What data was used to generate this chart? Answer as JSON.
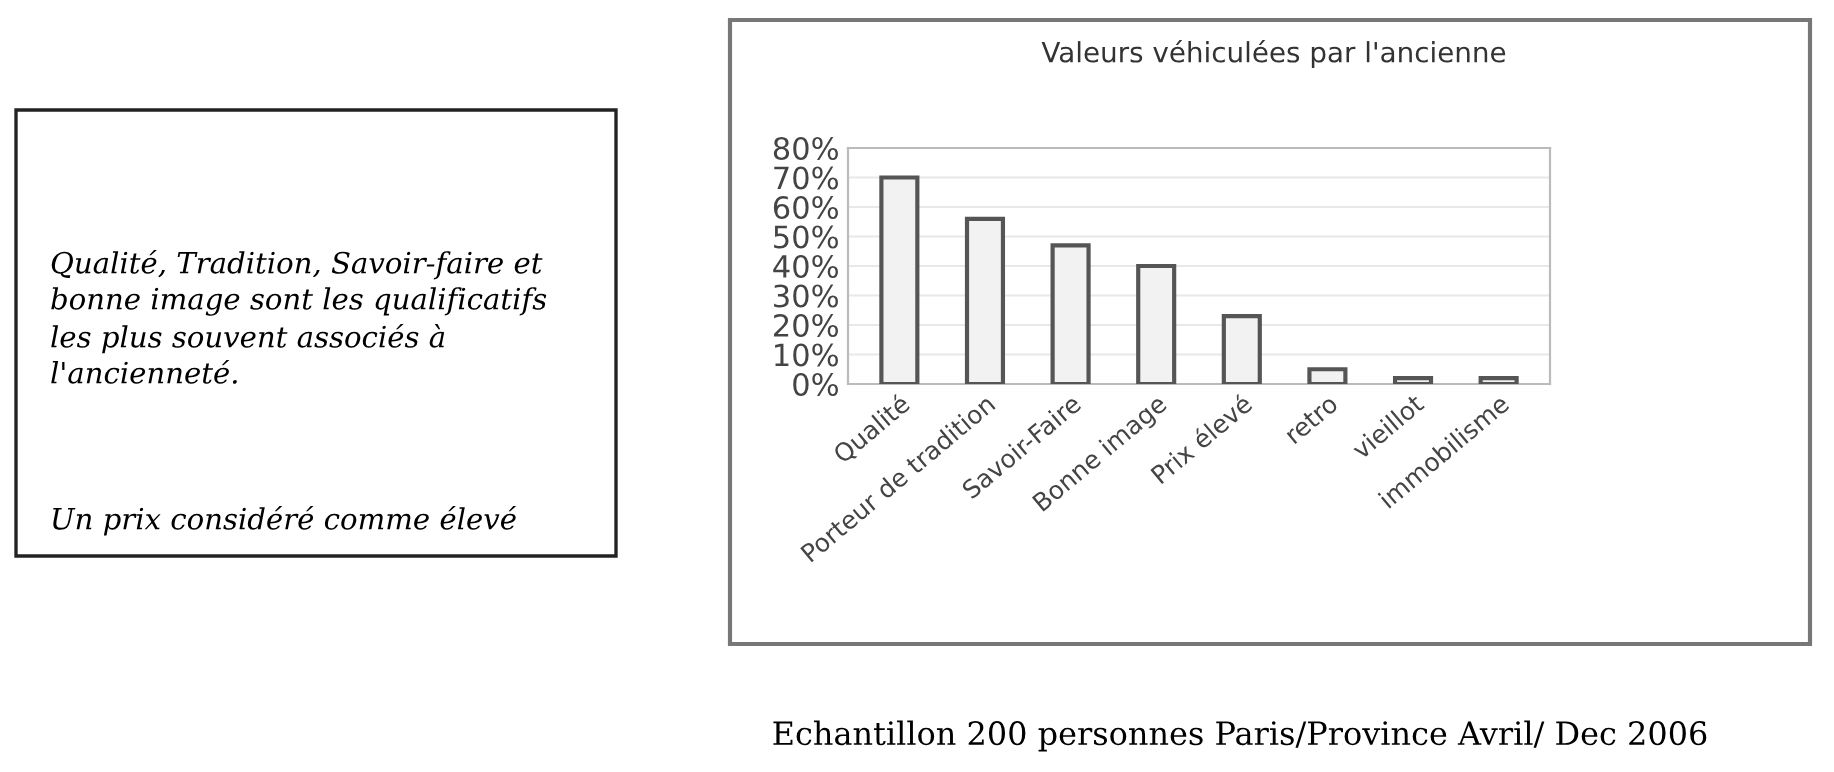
{
  "chart_data": {
    "type": "bar",
    "title": "Valeurs véhiculées par l'ancienne",
    "categories": [
      "Qualité",
      "Porteur de tradition",
      "Savoir-Faire",
      "Bonne image",
      "Prix élevé",
      "retro",
      "vieillot",
      "immobilisme"
    ],
    "values": [
      70,
      56,
      47,
      40,
      23,
      5,
      2,
      2
    ],
    "color": "#f2f2f2",
    "ylim": [
      0,
      80
    ],
    "yticks": [
      {
        "value": 0,
        "label": "0%"
      },
      {
        "value": 10,
        "label": "10%"
      },
      {
        "value": 20,
        "label": "20%"
      },
      {
        "value": 30,
        "label": "30%"
      },
      {
        "value": 40,
        "label": "40%"
      },
      {
        "value": 50,
        "label": "50%"
      },
      {
        "value": 60,
        "label": "60%"
      },
      {
        "value": 70,
        "label": "70%"
      },
      {
        "value": 80,
        "label": "80%"
      }
    ],
    "grid": "y",
    "annotations": [
      "Qualité, Tradition, Savoir-faire et\nbonne image sont les qualificatifs\nles plus souvent associés à\nl'ancienneté.",
      "Un prix considéré comme élevé",
      "Echantillon 200 personnes Paris/Province Avril/ Dec 2006"
    ]
  }
}
